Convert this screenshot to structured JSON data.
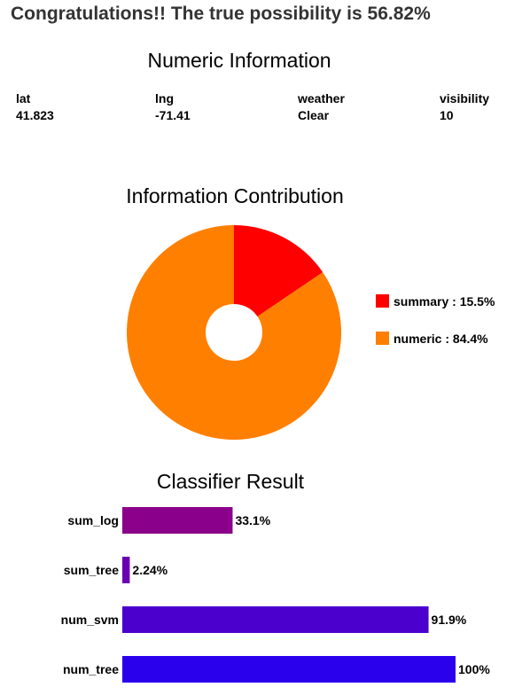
{
  "headline": "Congratulations!! The true possibility is 56.82%",
  "numeric_info": {
    "title": "Numeric Information",
    "fields": [
      {
        "label": "lat",
        "value": "41.823"
      },
      {
        "label": "lng",
        "value": "-71.41"
      },
      {
        "label": "weather",
        "value": "Clear"
      },
      {
        "label": "visibility",
        "value": "10"
      }
    ]
  },
  "chart_data": [
    {
      "type": "pie",
      "title": "Information Contribution",
      "donut": true,
      "legend_position": "right",
      "slices": [
        {
          "name": "summary",
          "value": 15.5,
          "label": "summary : 15.5%",
          "color": "#ff0000"
        },
        {
          "name": "numeric",
          "value": 84.4,
          "label": "numeric : 84.4%",
          "color": "#ff7f00"
        }
      ]
    },
    {
      "type": "bar",
      "orientation": "horizontal",
      "title": "Classifier Result",
      "categories": [
        "sum_log",
        "sum_tree",
        "num_svm",
        "num_tree"
      ],
      "values": [
        33.1,
        2.24,
        91.9,
        100
      ],
      "value_labels": [
        "33.1%",
        "2.24%",
        "91.9%",
        "100%"
      ],
      "colors": [
        "#8b008b",
        "#6a00b0",
        "#4b00cd",
        "#2a00ec"
      ],
      "xlim": [
        0,
        100
      ]
    }
  ]
}
